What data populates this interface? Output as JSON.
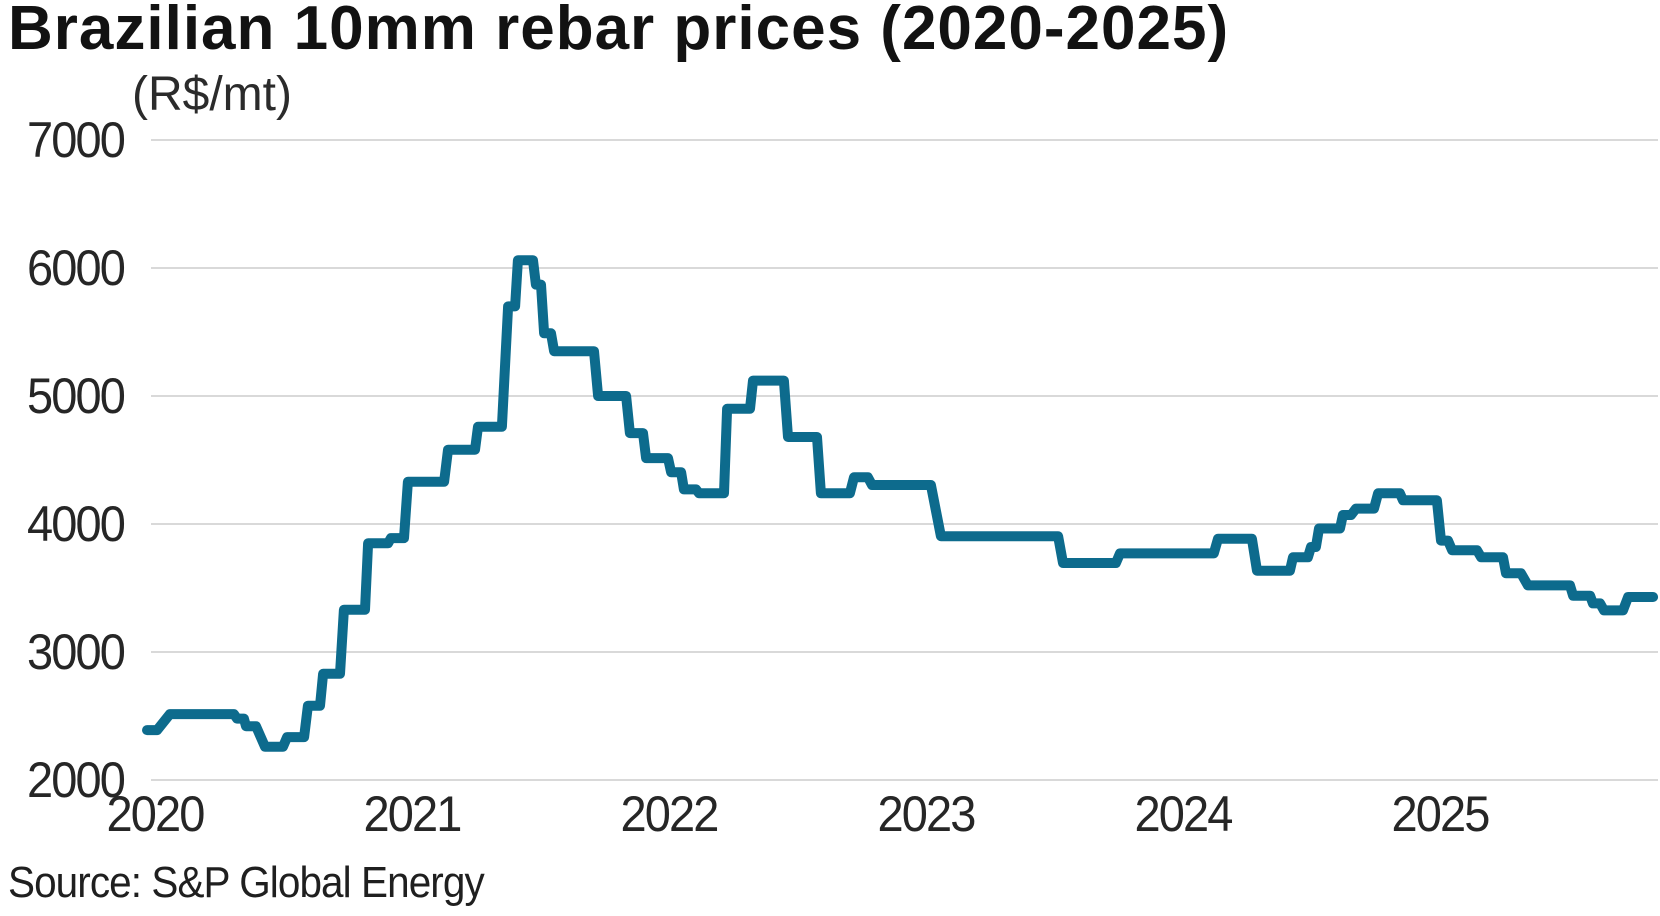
{
  "chart_data": {
    "type": "line",
    "title": "Brazilian 10mm rebar prices (2020-2025)",
    "unit_label": "(R$/mt)",
    "source": "Source: S&P Global Energy",
    "line_color": "#0d6b8d",
    "grid_color": "#d9d9d9",
    "text_color": "#262626",
    "legend": "none",
    "grid": "horizontal-only",
    "xlabel": "",
    "ylabel": "R$/mt",
    "ylim": [
      2000,
      7000
    ],
    "xlim": [
      2019.96,
      2025.86
    ],
    "x_ticks": [
      "2020",
      "2021",
      "2022",
      "2023",
      "2024",
      "2025"
    ],
    "y_ticks": [
      "7000",
      "6000",
      "5000",
      "4000",
      "3000",
      "2000"
    ],
    "series": [
      {
        "name": "Brazilian 10mm rebar price (R$/mt)",
        "step_format": "[start_year_decimal, end_year_decimal, price_R$_per_mt]",
        "steps": [
          [
            2019.969,
            2020.008,
            2390
          ],
          [
            2020.058,
            2020.307,
            2515
          ],
          [
            2020.319,
            2020.346,
            2480
          ],
          [
            2020.354,
            2020.393,
            2420
          ],
          [
            2020.428,
            2020.498,
            2260
          ],
          [
            2020.514,
            2020.58,
            2335
          ],
          [
            2020.595,
            2020.642,
            2580
          ],
          [
            2020.654,
            2020.72,
            2830
          ],
          [
            2020.735,
            2020.817,
            3330
          ],
          [
            2020.829,
            2020.907,
            3850
          ],
          [
            2020.918,
            2020.969,
            3890
          ],
          [
            2020.984,
            2021.125,
            4330
          ],
          [
            2021.14,
            2021.245,
            4580
          ],
          [
            2021.257,
            2021.35,
            4760
          ],
          [
            2021.374,
            2021.401,
            5700
          ],
          [
            2021.412,
            2021.471,
            6060
          ],
          [
            2021.482,
            2021.502,
            5870
          ],
          [
            2021.514,
            2021.541,
            5490
          ],
          [
            2021.553,
            2021.708,
            5350
          ],
          [
            2021.724,
            2021.833,
            5000
          ],
          [
            2021.848,
            2021.899,
            4710
          ],
          [
            2021.911,
            2021.996,
            4515
          ],
          [
            2022.008,
            2022.047,
            4405
          ],
          [
            2022.058,
            2022.105,
            4270
          ],
          [
            2022.117,
            2022.214,
            4240
          ],
          [
            2022.226,
            2022.315,
            4900
          ],
          [
            2022.327,
            2022.447,
            5120
          ],
          [
            2022.463,
            2022.576,
            4680
          ],
          [
            2022.591,
            2022.704,
            4240
          ],
          [
            2022.72,
            2022.774,
            4365
          ],
          [
            2022.79,
            2023.019,
            4305
          ],
          [
            2023.058,
            2023.514,
            3905
          ],
          [
            2023.533,
            2023.739,
            3695
          ],
          [
            2023.755,
            2024.12,
            3770
          ],
          [
            2024.136,
            2024.268,
            3885
          ],
          [
            2024.288,
            2024.416,
            3635
          ],
          [
            2024.428,
            2024.486,
            3740
          ],
          [
            2024.498,
            2024.517,
            3820
          ],
          [
            2024.529,
            2024.611,
            3965
          ],
          [
            2024.622,
            2024.654,
            4070
          ],
          [
            2024.673,
            2024.743,
            4120
          ],
          [
            2024.759,
            2024.844,
            4240
          ],
          [
            2024.856,
            2024.988,
            4185
          ],
          [
            2025.004,
            2025.031,
            3870
          ],
          [
            2025.047,
            2025.144,
            3795
          ],
          [
            2025.16,
            2025.245,
            3740
          ],
          [
            2025.257,
            2025.315,
            3615
          ],
          [
            2025.342,
            2025.506,
            3520
          ],
          [
            2025.518,
            2025.584,
            3440
          ],
          [
            2025.595,
            2025.623,
            3380
          ],
          [
            2025.638,
            2025.712,
            3325
          ],
          [
            2025.732,
            2025.829,
            3430
          ]
        ]
      }
    ]
  }
}
